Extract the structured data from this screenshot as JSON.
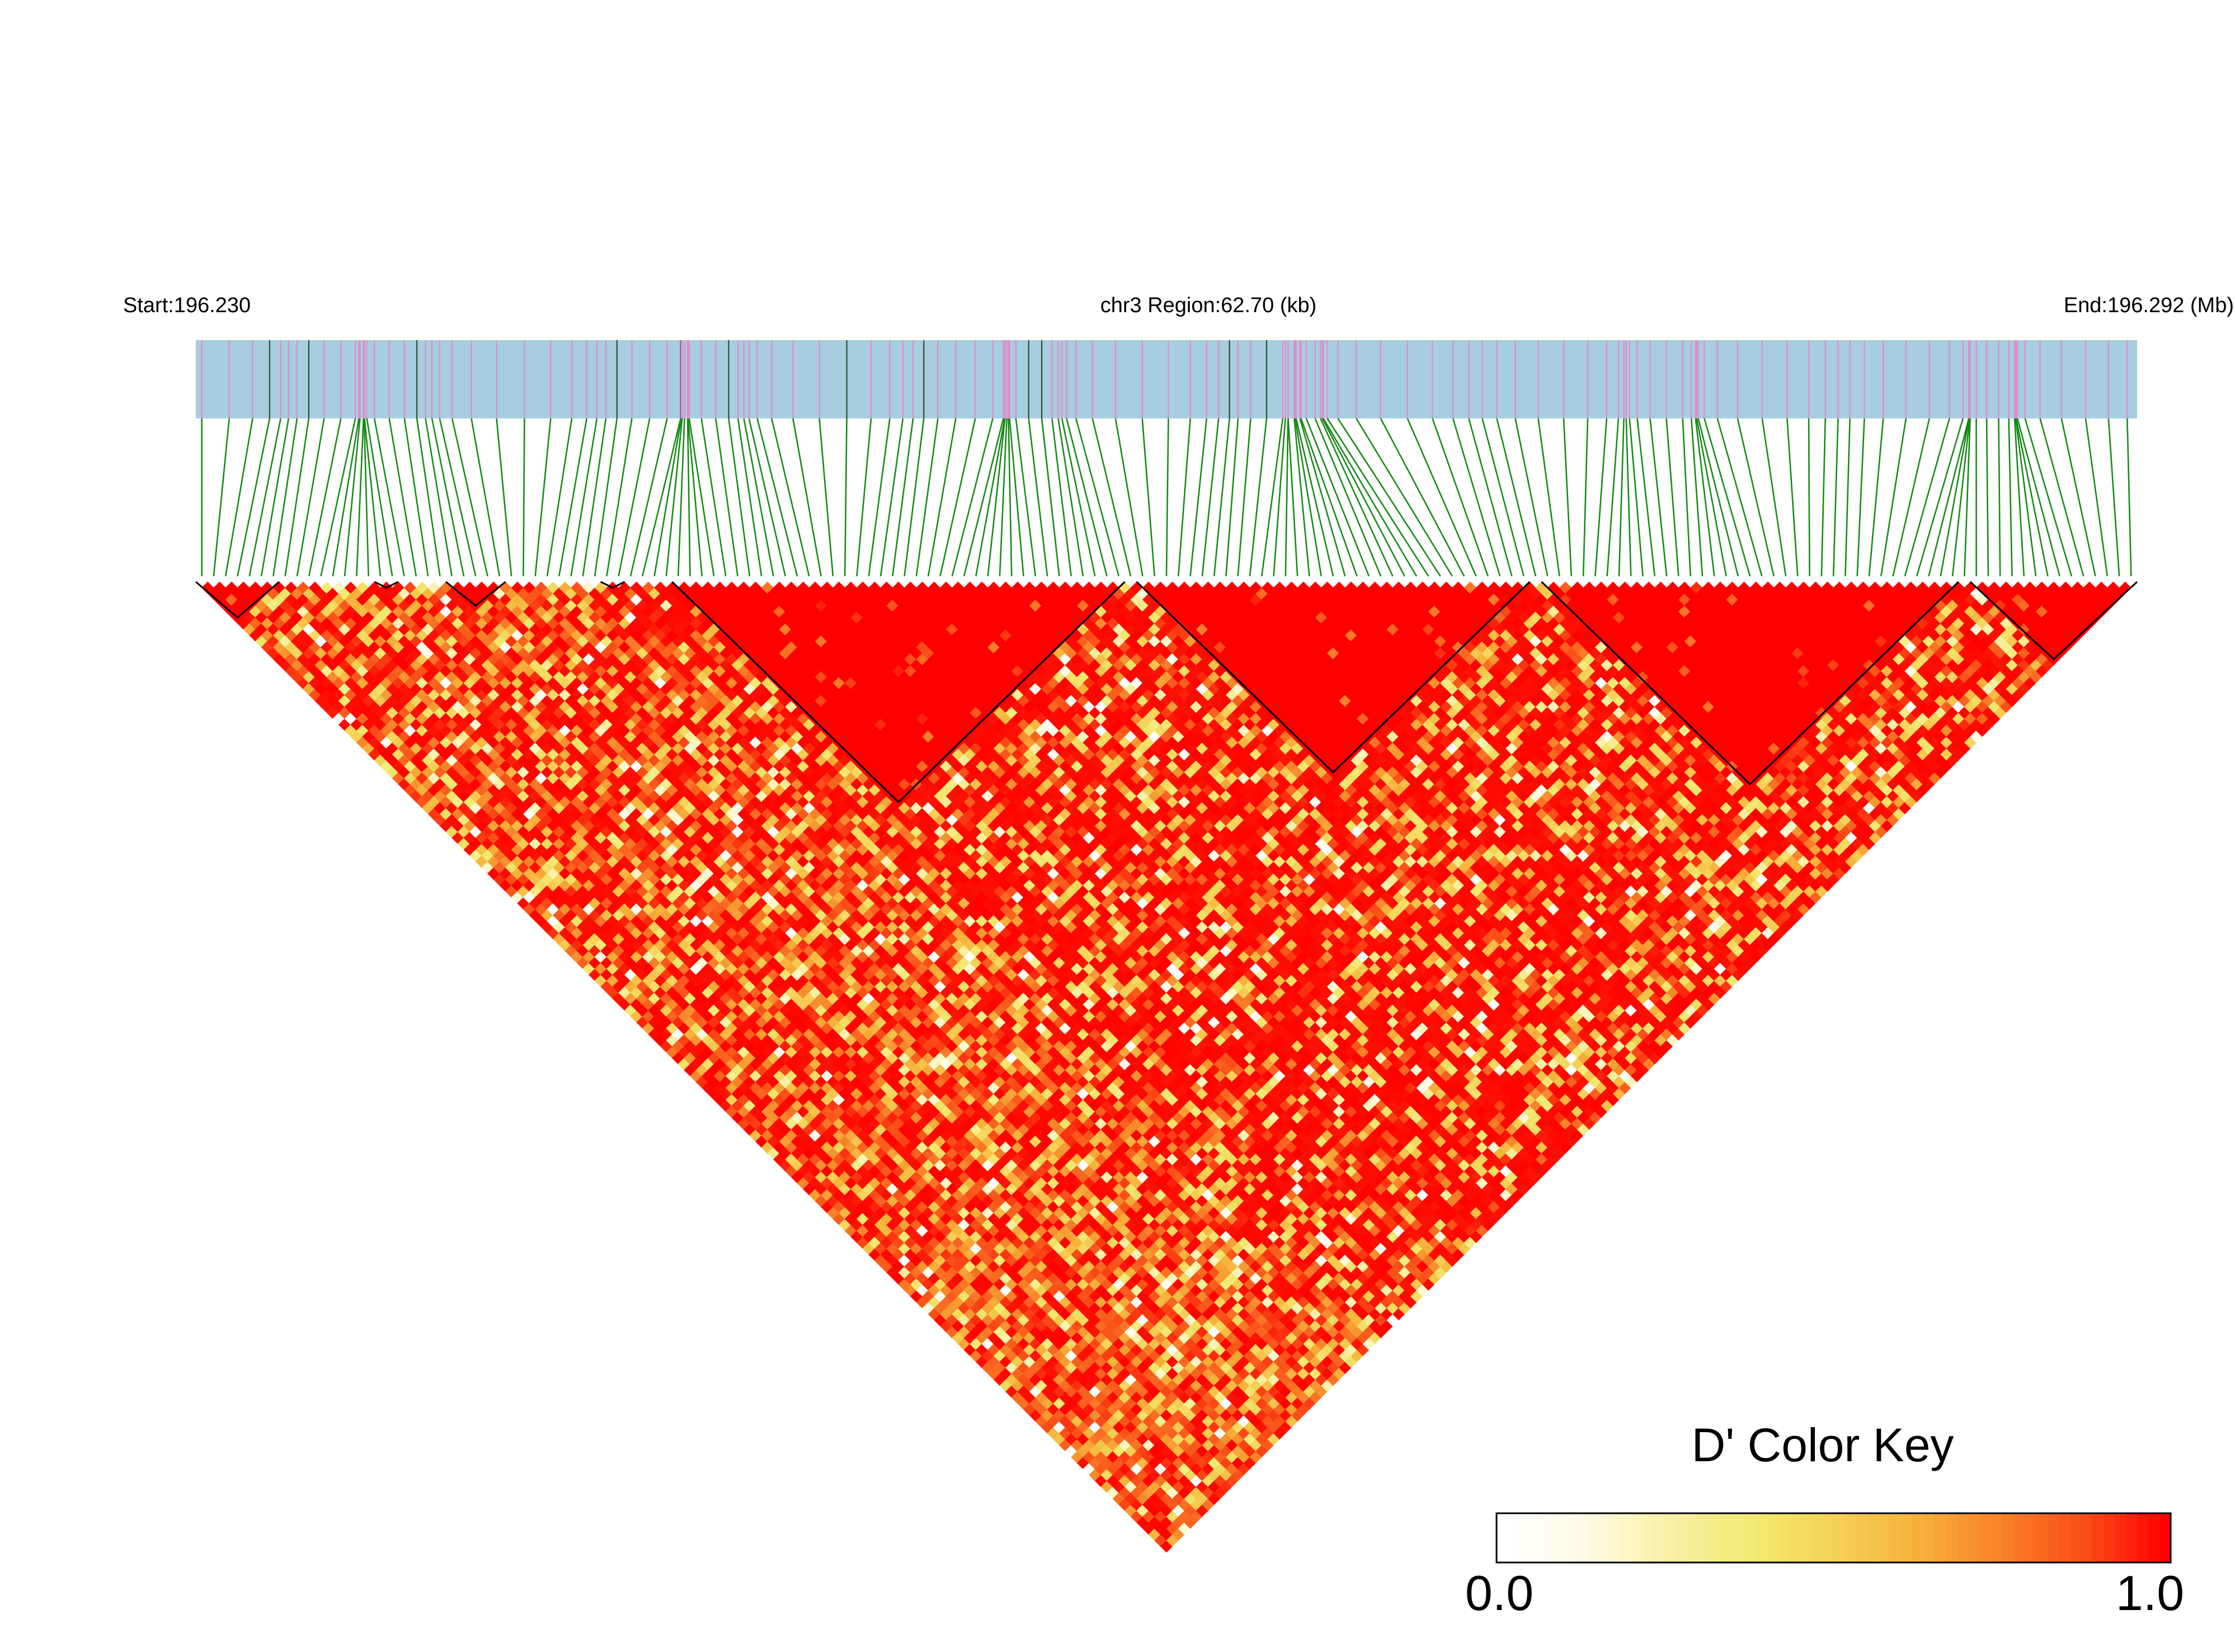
{
  "chart_data": {
    "type": "heatmap",
    "subtype": "ld-triangle",
    "header": {
      "start": "Start:196.230",
      "region": "chr3 Region:62.70 (kb)",
      "end": "End:196.292 (Mb)"
    },
    "region": {
      "chrom": "chr3",
      "start_mb": 196.23,
      "end_mb": 196.292,
      "span_kb": 62.7
    },
    "n_snps": 163,
    "haplotype_blocks": [
      [
        0,
        6
      ],
      [
        15,
        16
      ],
      [
        21,
        25
      ],
      [
        34,
        35
      ],
      [
        40,
        77
      ],
      [
        79,
        111
      ],
      [
        113,
        147
      ],
      [
        149,
        162
      ]
    ],
    "legend": {
      "title": "D' Color Key",
      "min_label": "0.0",
      "max_label": "1.0",
      "range": [
        0,
        1
      ]
    },
    "colors": {
      "track": "#a6cde0",
      "marker": "#e08cc8",
      "marker_dark": "#2e4d2e",
      "connector": "#178a17",
      "high": "#ff0000",
      "low": "#ffffff",
      "scale": [
        "#ffffff",
        "#fffbe6",
        "#f8f0a6",
        "#f2ea72",
        "#f5d257",
        "#f7b23b",
        "#f8822a",
        "#fa4f18",
        "#ff0000"
      ]
    }
  }
}
